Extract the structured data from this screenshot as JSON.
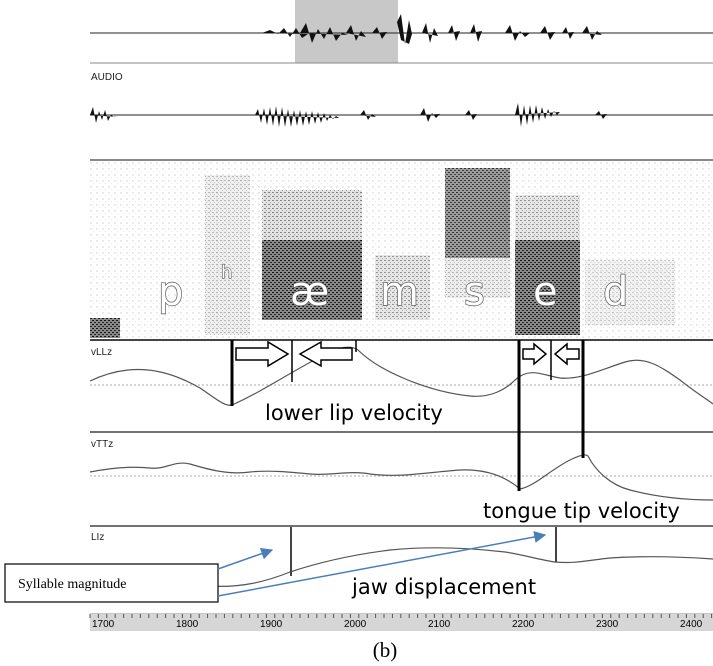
{
  "panels": {
    "audio_label": "AUDIO",
    "vll_label": "vLLz",
    "vtt_label": "vTTz",
    "li_label": "LIz"
  },
  "phones": [
    "p",
    "h",
    "æ",
    "m",
    "s",
    "e",
    "d"
  ],
  "annotations": {
    "lower_lip": "lower lip velocity",
    "tongue_tip": "tongue tip velocity",
    "jaw": "jaw displacement",
    "syllable_magnitude": "Syllable magnitude"
  },
  "time_axis": {
    "ticks": [
      "1700",
      "1800",
      "1900",
      "2000",
      "2100",
      "2200",
      "2300",
      "2400"
    ]
  },
  "caption": "(b)",
  "colors": {
    "arrow": "#4a7ebb",
    "highlight": "#c8c8c8",
    "trace": "#555555"
  }
}
